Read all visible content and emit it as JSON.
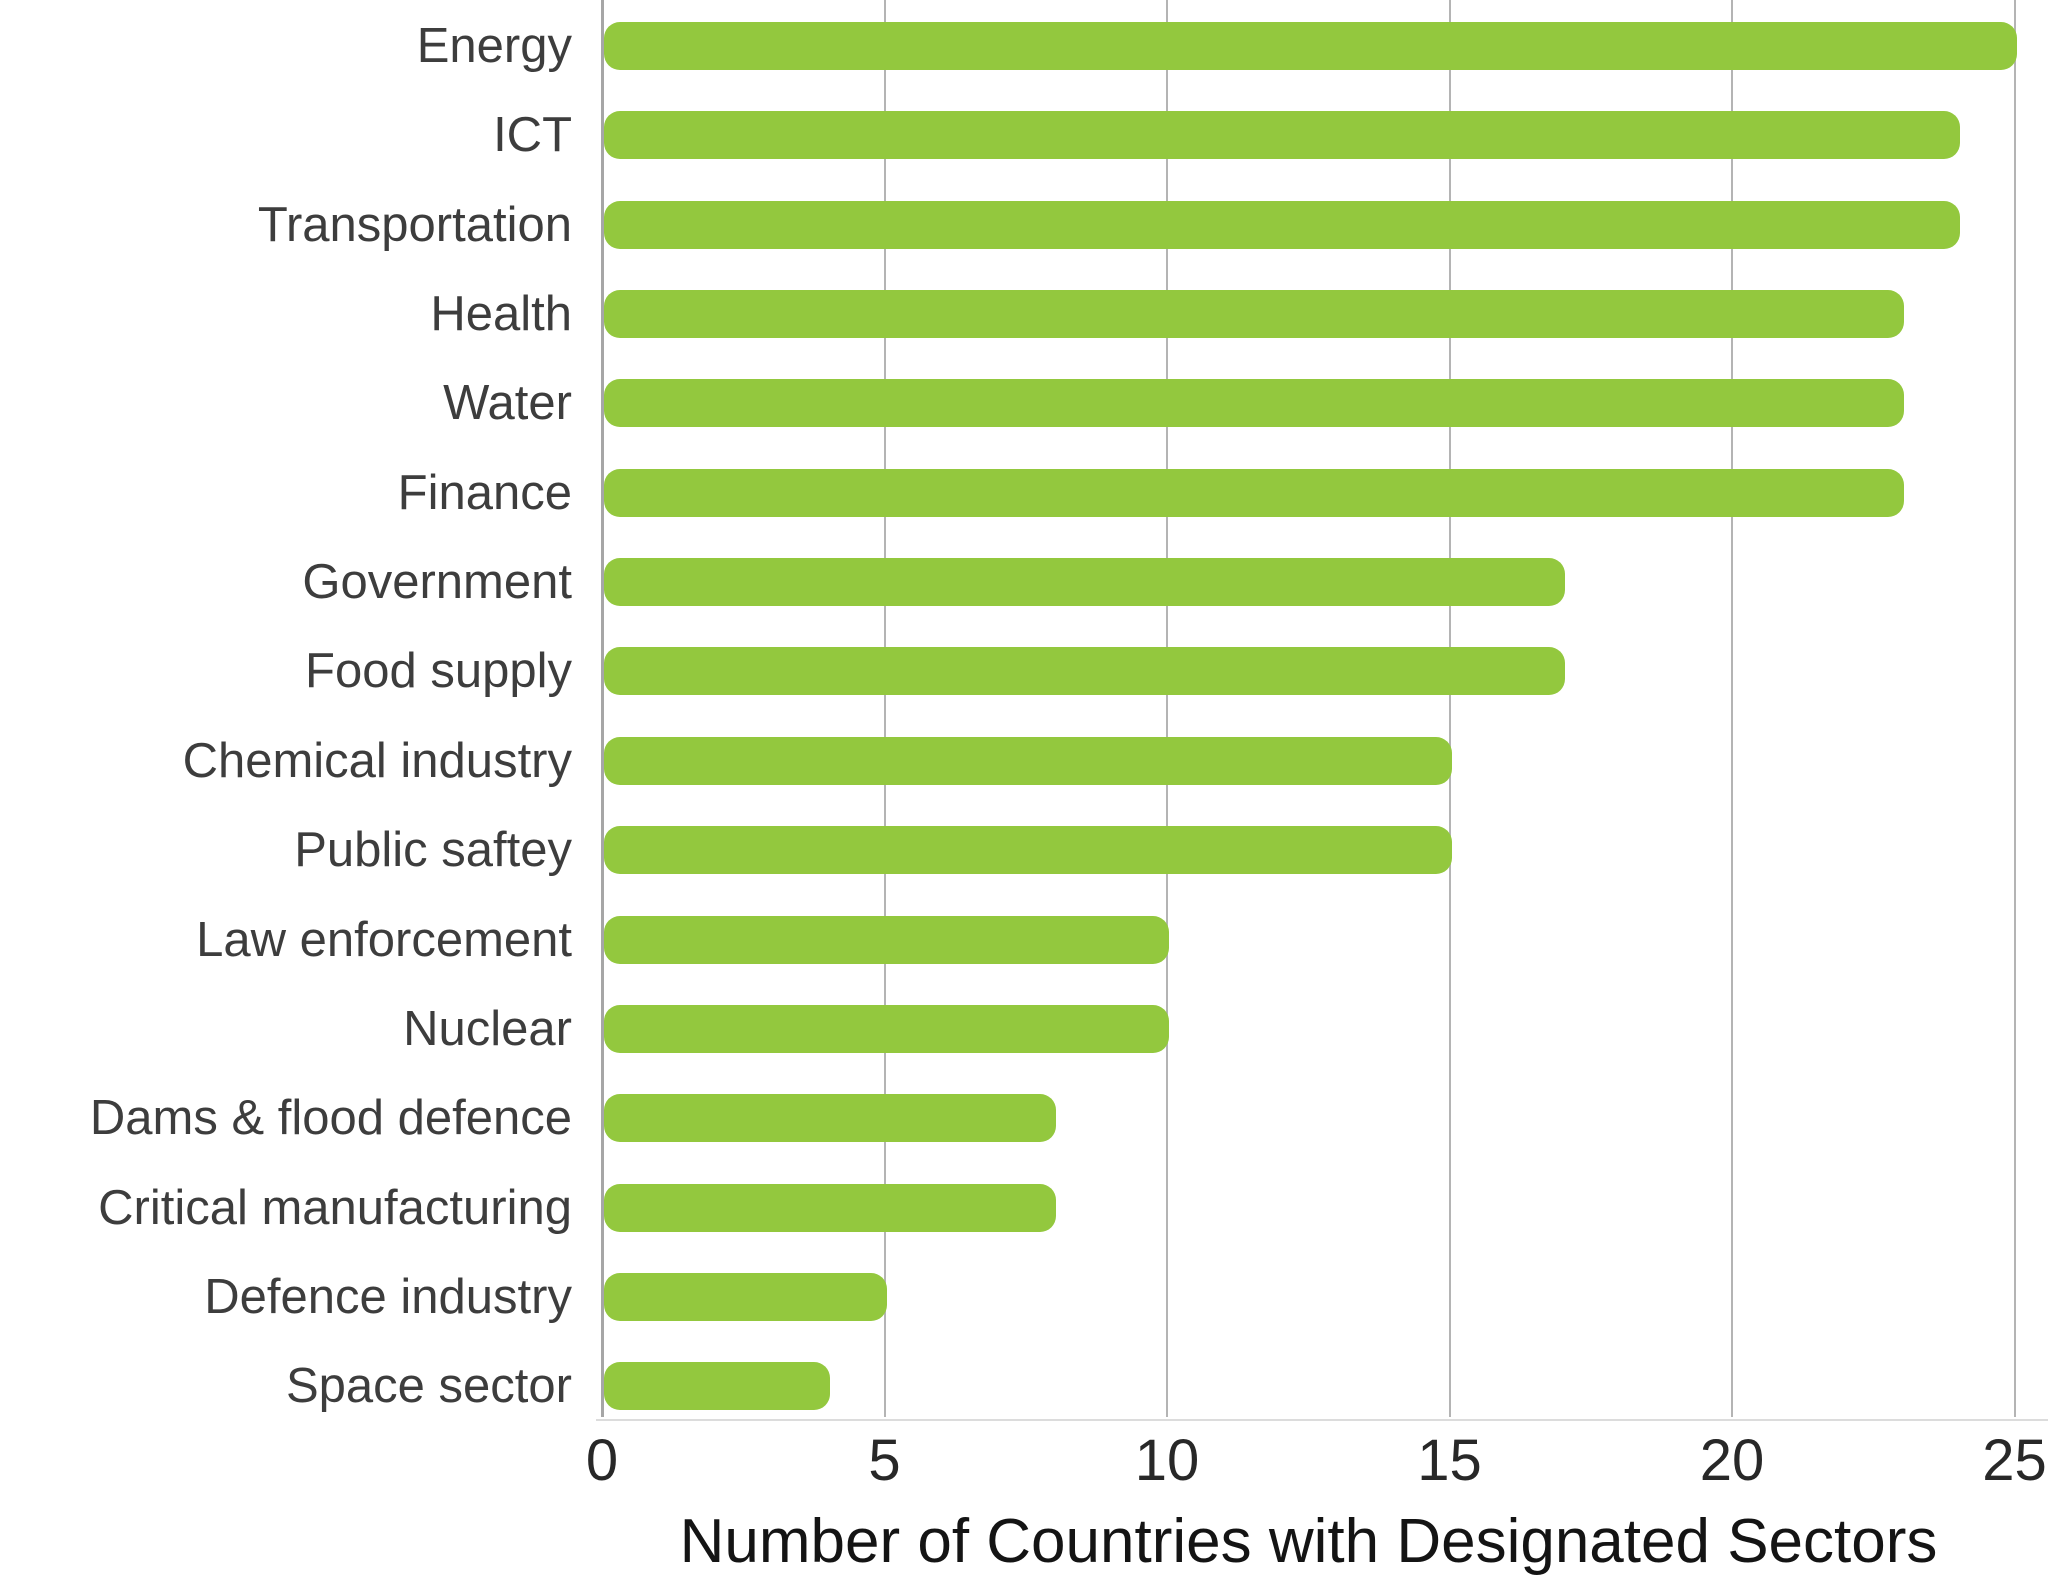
{
  "chart_data": {
    "type": "bar",
    "orientation": "horizontal",
    "title": "",
    "xlabel": "Number of Countries with Designated Sectors",
    "ylabel": "",
    "categories": [
      "Energy",
      "ICT",
      "Transportation",
      "Health",
      "Water",
      "Finance",
      "Government",
      "Food supply",
      "Chemical industry",
      "Public saftey",
      "Law enforcement",
      "Nuclear",
      "Dams & flood defence",
      "Critical manufacturing",
      "Defence industry",
      "Space sector"
    ],
    "values": [
      25,
      24,
      24,
      23,
      23,
      23,
      17,
      17,
      15,
      15,
      10,
      10,
      8,
      8,
      5,
      4
    ],
    "x_ticks": [
      0,
      5,
      10,
      15,
      20,
      25
    ],
    "xlim": [
      0,
      25
    ],
    "grid": "vertical-on",
    "legend": "none",
    "bar_color": "#93c83e",
    "label_color": "#3d3d3d",
    "tick_color": "#282828",
    "grid_color": "#b4b4b4"
  }
}
